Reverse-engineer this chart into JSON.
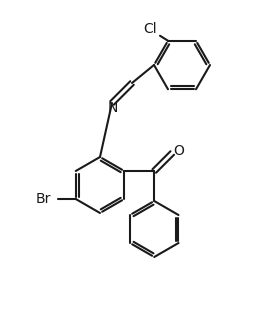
{
  "background_color": "#ffffff",
  "line_color": "#1a1a1a",
  "line_width": 1.5,
  "font_size": 10,
  "label_Cl": "Cl",
  "label_Br": "Br",
  "label_N": "N",
  "label_O": "O",
  "figsize": [
    2.61,
    3.33
  ],
  "dpi": 100
}
